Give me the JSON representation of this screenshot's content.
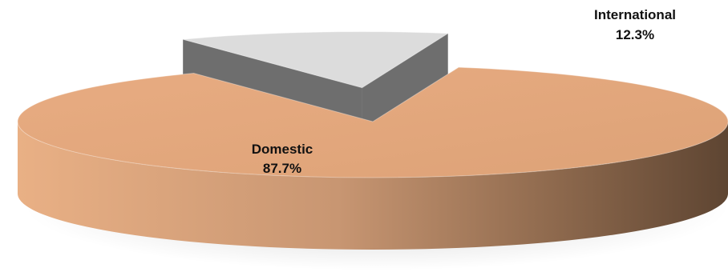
{
  "chart_data": {
    "type": "pie",
    "style": "3d-exploded",
    "slices": [
      {
        "name": "Domestic",
        "value": 87.7,
        "label": "87.7%",
        "color": "#E2A87D"
      },
      {
        "name": "International",
        "value": 12.3,
        "label": "12.3%",
        "color": "#DCDCDC"
      }
    ],
    "legend": false
  }
}
